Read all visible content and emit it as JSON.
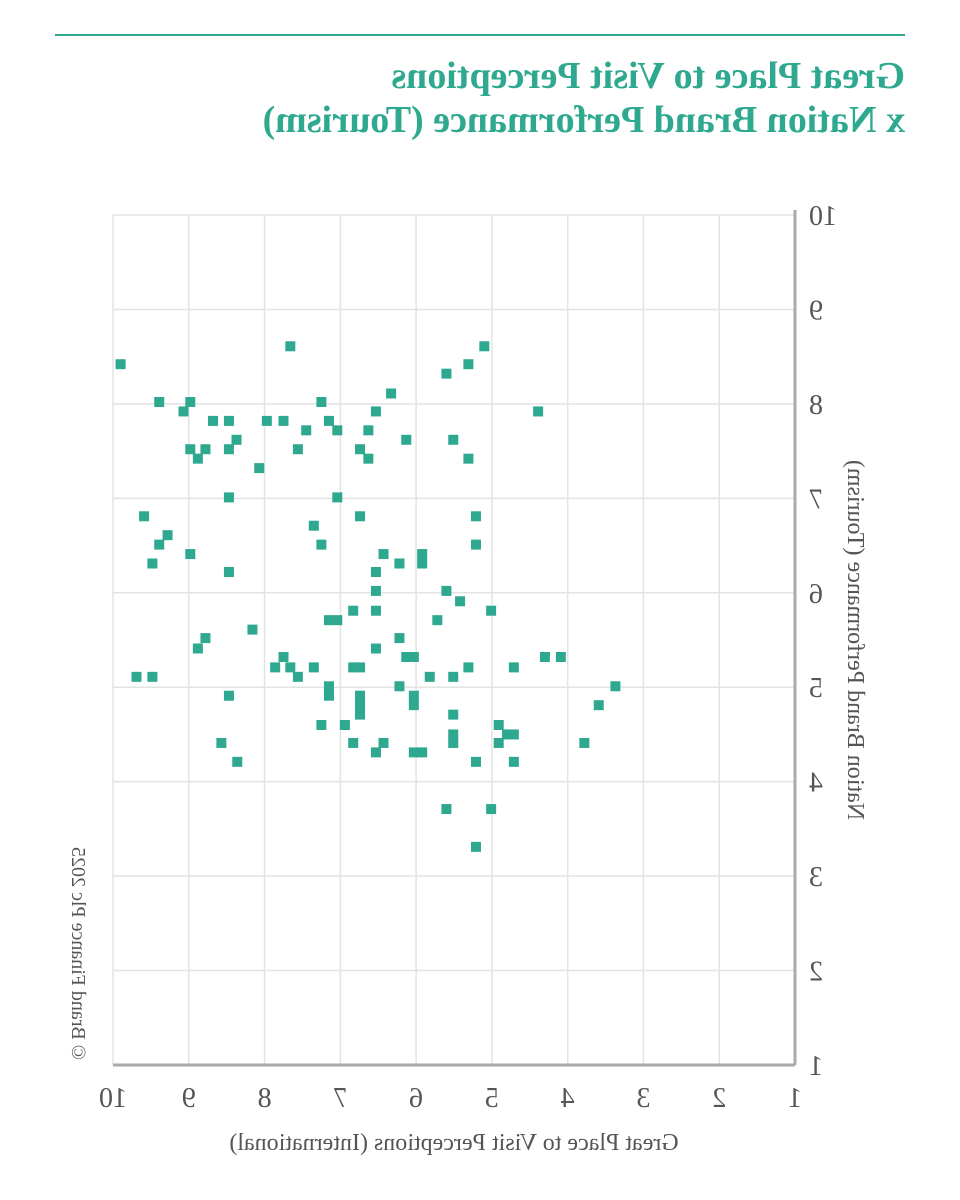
{
  "chart_data": {
    "type": "scatter",
    "title": [
      "Great Place to Visit Perceptions",
      "x Nation Brand Performance (Tourism)"
    ],
    "x_label": "Great Place to Visit Perceptions (International)",
    "y_label": "Nation Brand Performance (Tourism)",
    "footnote": "© Brand Finance Plc 2025",
    "color": "#2ea88f",
    "xlim": [
      1,
      10
    ],
    "ylim": [
      1,
      10
    ],
    "xticks": [
      1,
      2,
      3,
      4,
      5,
      6,
      7,
      8,
      9,
      10
    ],
    "yticks": [
      1,
      2,
      3,
      4,
      5,
      6,
      7,
      8,
      9,
      10
    ],
    "grid": true,
    "x": [
      9.9,
      7.66,
      5.1,
      5.31,
      5.6,
      6.33,
      9.39,
      8.98,
      9.07,
      7.25,
      6.53,
      4.39,
      8.68,
      8.47,
      7.97,
      7.75,
      7.15,
      7.45,
      7.04,
      6.63,
      8.37,
      6.13,
      5.51,
      8.98,
      8.78,
      8.47,
      7.56,
      6.74,
      8.88,
      6.63,
      5.31,
      8.07,
      8.47,
      7.04,
      9.59,
      6.74,
      5.21,
      7.35,
      9.28,
      9.39,
      7.25,
      5.21,
      8.98,
      6.43,
      5.92,
      5.92,
      9.48,
      6.22,
      8.47,
      6.53,
      6.53,
      5.6,
      5.42,
      6.53,
      6.83,
      5.01,
      7.15,
      7.04,
      5.72,
      8.16,
      8.78,
      6.22,
      8.88,
      6.53,
      7.75,
      6.13,
      6.03,
      4.3,
      4.09,
      7.86,
      7.66,
      7.35,
      6.83,
      6.74,
      5.31,
      4.71,
      7.56,
      9.69,
      9.48,
      5.82,
      5.51,
      7.15,
      6.22,
      3.37,
      7.15,
      8.47,
      6.74,
      6.03,
      6.74,
      6.03,
      3.59,
      6.74,
      5.51,
      7.25,
      6.94,
      4.91,
      5.51,
      4.8,
      4.71,
      8.57,
      6.83,
      6.43,
      5.51,
      4.91,
      3.78,
      6.53,
      6.03,
      5.92,
      8.36,
      5.21,
      4.71,
      5.6,
      5.01,
      5.21
    ],
    "values": [
      8.42,
      8.61,
      8.61,
      8.42,
      8.32,
      8.11,
      8.02,
      8.02,
      7.92,
      8.02,
      7.92,
      7.92,
      7.82,
      7.82,
      7.82,
      7.82,
      7.82,
      7.72,
      7.72,
      7.72,
      7.62,
      7.62,
      7.62,
      7.52,
      7.52,
      7.52,
      7.52,
      7.52,
      7.42,
      7.42,
      7.42,
      7.32,
      7.01,
      7.01,
      6.81,
      6.81,
      6.81,
      6.71,
      6.61,
      6.51,
      6.51,
      6.51,
      6.41,
      6.41,
      6.41,
      6.31,
      6.31,
      6.31,
      6.22,
      6.22,
      6.02,
      6.02,
      5.91,
      5.81,
      5.81,
      5.81,
      5.71,
      5.71,
      5.71,
      5.61,
      5.52,
      5.52,
      5.41,
      5.41,
      5.32,
      5.32,
      5.32,
      5.32,
      5.32,
      5.21,
      5.21,
      5.21,
      5.21,
      5.21,
      5.21,
      5.21,
      5.11,
      5.11,
      5.11,
      5.11,
      5.11,
      5.01,
      5.01,
      5.01,
      4.91,
      4.91,
      4.91,
      4.91,
      4.81,
      4.81,
      4.81,
      4.71,
      4.71,
      4.6,
      4.6,
      4.6,
      4.5,
      4.5,
      4.5,
      4.41,
      4.41,
      4.41,
      4.41,
      4.41,
      4.41,
      4.31,
      4.31,
      4.31,
      4.21,
      4.21,
      4.21,
      3.71,
      3.71,
      3.31
    ]
  }
}
